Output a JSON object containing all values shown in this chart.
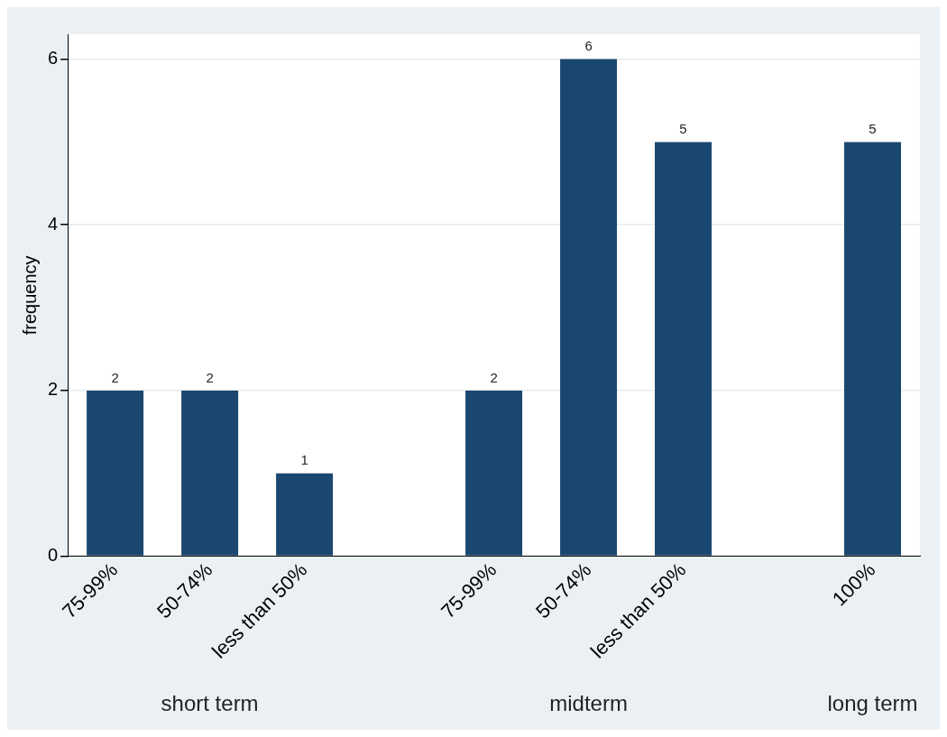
{
  "chart_data": {
    "type": "bar",
    "ylabel": "frequency",
    "categories": [
      "75-99%",
      "50-74%",
      "less than 50%",
      null,
      "75-99%",
      "50-74%",
      "less than 50%",
      null,
      "100%"
    ],
    "values": [
      2,
      2,
      1,
      null,
      2,
      6,
      5,
      null,
      5
    ],
    "color": "#1a476f",
    "ylim": [
      0,
      6.3
    ],
    "yticks": [
      0,
      2,
      4,
      6
    ],
    "grid": "y",
    "legend": false,
    "data_labels": true,
    "annotations": [
      "short term",
      "midterm",
      "long term"
    ]
  }
}
